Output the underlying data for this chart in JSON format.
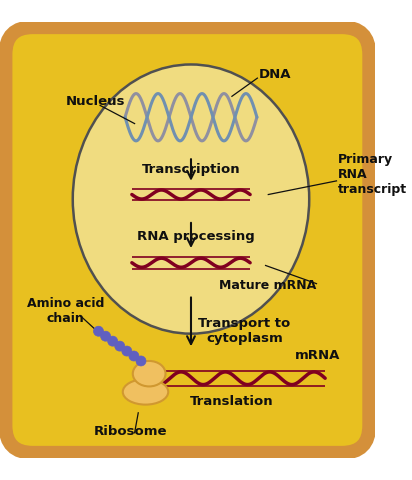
{
  "bg_outer": "#D4903A",
  "bg_outer_fill": "#E8A040",
  "bg_cell": "#E8C020",
  "bg_nucleus": "#F0DC80",
  "nucleus_border": "#505050",
  "rna_color": "#800020",
  "dna_color1": "#7090B0",
  "dna_color2": "#9090A0",
  "ribosome_color": "#F0C060",
  "ribosome_edge": "#D09830",
  "amino_acid_color": "#6060C0",
  "arrow_color": "#101010",
  "text_color": "#101010",
  "label_nucleus": "Nucleus",
  "label_dna": "DNA",
  "label_transcription": "Transcription",
  "label_rna_processing": "RNA processing",
  "label_primary": "Primary\nRNA\ntranscript",
  "label_mature": "Mature mRNA",
  "label_transport": "Transport to\ncytoplasm",
  "label_mrna": "mRNA",
  "label_translation": "Translation",
  "label_ribosome": "Ribosome",
  "label_amino": "Amino acid\nchain",
  "fig_width": 4.12,
  "fig_height": 4.8,
  "dpi": 100
}
